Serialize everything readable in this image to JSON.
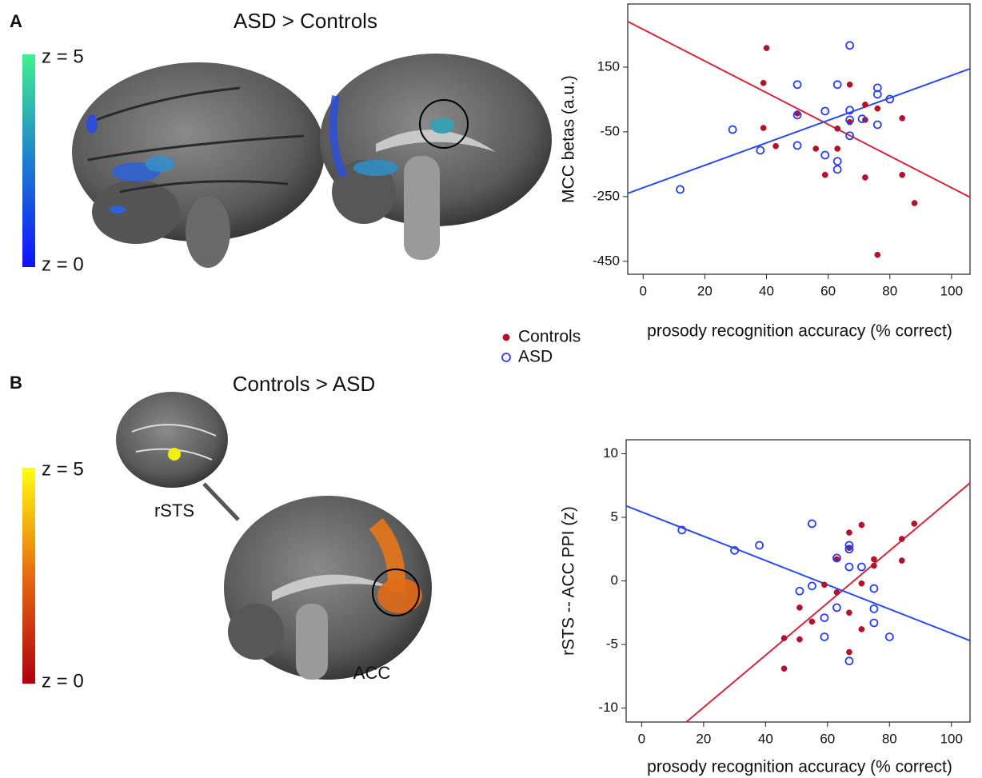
{
  "panels": [
    {
      "label": "A",
      "title": "ASD > Controls",
      "colorbar": {
        "max_label": "z = 5",
        "min_label": "z = 0"
      }
    },
    {
      "label": "B",
      "title": "Controls > ASD",
      "colorbar": {
        "max_label": "z = 5",
        "min_label": "z = 0"
      },
      "annotations": [
        "rSTS",
        "ACC"
      ]
    }
  ],
  "chart_data": [
    {
      "type": "scatter",
      "x_label": "prosody recognition accuracy (% correct)",
      "y_label": "MCC betas (a.u.)",
      "xlim": [
        -5,
        106
      ],
      "ylim": [
        -490,
        345
      ],
      "xticks": [
        0,
        20,
        40,
        60,
        80,
        100
      ],
      "yticks": [
        150,
        -50,
        -250,
        -450
      ],
      "series": [
        {
          "name": "Controls",
          "color": "#b0132b",
          "marker": "filled",
          "x": [
            40,
            39,
            67,
            39,
            50,
            43,
            56,
            63,
            72,
            72,
            67,
            63,
            76,
            84,
            59,
            72,
            84,
            88,
            76
          ],
          "values": [
            209,
            101,
            96,
            -38,
            7,
            -94,
            -102,
            -40,
            34,
            -13,
            -20,
            -102,
            22,
            -8,
            -183,
            -191,
            -183,
            -270,
            -430
          ]
        },
        {
          "name": "ASD",
          "color": "#2a3ff0",
          "marker": "open",
          "x": [
            67,
            50,
            63,
            76,
            76,
            80,
            59,
            67,
            67,
            71,
            76,
            50,
            29,
            38,
            50,
            59,
            63,
            63,
            67,
            12
          ],
          "values": [
            217,
            96,
            96,
            86,
            66,
            51,
            14,
            17,
            -13,
            -10,
            -28,
            2,
            -43,
            -107,
            -92,
            -122,
            -141,
            -166,
            -62,
            -228
          ]
        }
      ],
      "fit_lines": [
        {
          "color": "#d3263d",
          "x": [
            -5,
            106
          ],
          "values": [
            291,
            -252
          ]
        },
        {
          "color": "#2a4af2",
          "x": [
            -5,
            106
          ],
          "values": [
            -240,
            145
          ]
        }
      ]
    },
    {
      "type": "scatter",
      "x_label": "prosody recognition accuracy (% correct)",
      "y_label": "rSTS -- ACC PPI (z)",
      "xlim": [
        -5,
        106
      ],
      "ylim": [
        -11.1,
        11.1
      ],
      "xticks": [
        0,
        20,
        40,
        60,
        80,
        100
      ],
      "yticks": [
        10,
        5,
        0,
        -5,
        -10
      ],
      "series": [
        {
          "color": "#b0132b",
          "marker": "filled",
          "x": [
            46,
            46,
            51,
            51,
            55,
            59,
            63,
            63,
            67,
            67,
            67,
            67,
            71,
            71,
            71,
            75,
            75,
            84,
            84,
            88
          ],
          "values": [
            -4.5,
            -6.9,
            -2.1,
            -4.6,
            -3.2,
            -0.3,
            -0.9,
            1.7,
            3.8,
            2.6,
            -2.5,
            -5.6,
            4.4,
            -0.2,
            -3.8,
            1.7,
            1.2,
            3.3,
            1.6,
            4.5
          ]
        },
        {
          "color": "#2a3ff0",
          "marker": "open",
          "x": [
            13,
            30,
            38,
            55,
            51,
            55,
            63,
            63,
            59,
            59,
            67,
            67,
            67,
            67,
            71,
            75,
            75,
            75,
            80
          ],
          "values": [
            4.0,
            2.4,
            2.8,
            4.5,
            -0.8,
            -0.4,
            1.8,
            -2.1,
            -2.9,
            -4.4,
            2.8,
            2.5,
            1.1,
            -6.3,
            1.1,
            -0.6,
            -2.2,
            -3.3,
            -4.4
          ]
        }
      ],
      "fit_lines": [
        {
          "color": "#d3263d",
          "x": [
            14.4,
            106
          ],
          "values": [
            -11.1,
            7.7
          ]
        },
        {
          "color": "#2a4af2",
          "x": [
            -5,
            106
          ],
          "values": [
            5.9,
            -4.7
          ]
        }
      ]
    }
  ]
}
